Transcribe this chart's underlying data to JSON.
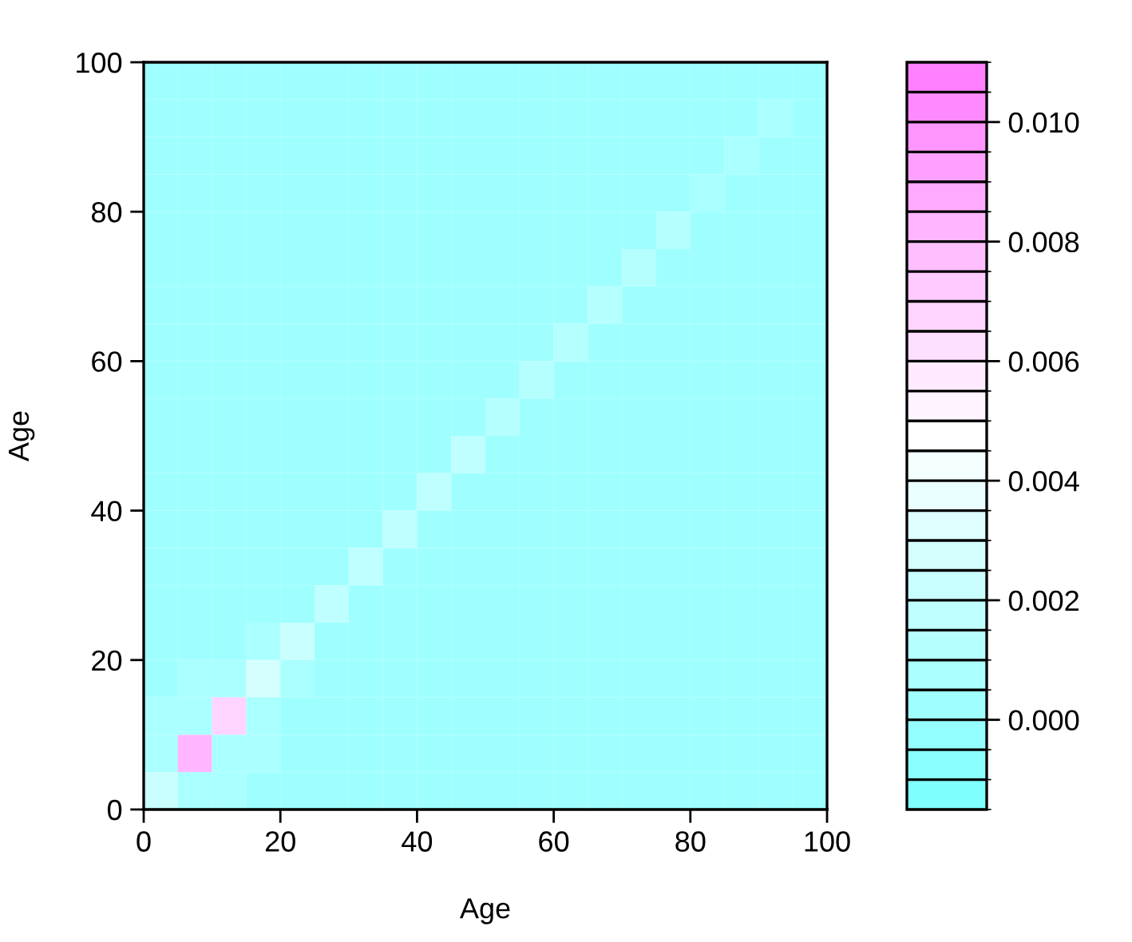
{
  "chart_data": {
    "type": "heatmap",
    "xlabel": "Age",
    "ylabel": "Age",
    "x": [
      2.5,
      7.5,
      12.5,
      17.5,
      22.5,
      27.5,
      32.5,
      37.5,
      42.5,
      47.5,
      52.5,
      57.5,
      62.5,
      67.5,
      72.5,
      77.5,
      82.5,
      87.5,
      92.5,
      97.5
    ],
    "y": [
      97.5,
      92.5,
      87.5,
      82.5,
      77.5,
      72.5,
      67.5,
      62.5,
      57.5,
      52.5,
      47.5,
      42.5,
      37.5,
      32.5,
      27.5,
      22.5,
      17.5,
      12.5,
      7.5,
      2.5
    ],
    "xlim": [
      0,
      100
    ],
    "ylim": [
      0,
      100
    ],
    "xticks": [
      0,
      20,
      40,
      60,
      80,
      100
    ],
    "yticks": [
      0,
      20,
      40,
      60,
      80,
      100
    ],
    "clim": [
      -0.0015,
      0.011
    ],
    "cticks": [
      {
        "value": 0,
        "label": "0.000"
      },
      {
        "value": 0.002,
        "label": "0.002"
      },
      {
        "value": 0.004,
        "label": "0.004"
      },
      {
        "value": 0.006,
        "label": "0.006"
      },
      {
        "value": 0.008,
        "label": "0.008"
      },
      {
        "value": 0.01,
        "label": "0.010"
      }
    ],
    "colors": [
      "#80ffff",
      "#8affff",
      "#95ffff",
      "#9fffff",
      "#aaffff",
      "#b5ffff",
      "#bfffff",
      "#caffff",
      "#d5ffff",
      "#dfffff",
      "#eaffff",
      "#f4ffff",
      "#ffffff",
      "#fff4ff",
      "#ffeaff",
      "#ffdfff",
      "#ffd5ff",
      "#ffcaff",
      "#ffbfff",
      "#ffb5ff",
      "#ffaaff",
      "#ff9fff",
      "#ff95ff",
      "#ff8aff",
      "#ff80ff"
    ],
    "cells": [
      [
        0.0003,
        0.0003,
        0.0003,
        0.0003,
        0.0003,
        0.0003,
        0.0003,
        0.0003,
        0.0003,
        0.0003,
        0.0003,
        0.0003,
        0.0003,
        0.0003,
        0.0003,
        0.0003,
        0.0003,
        0.0003,
        0.0003,
        0.0004
      ],
      [
        0.0003,
        0.0003,
        0.0003,
        0.0003,
        0.0003,
        0.0003,
        0.0003,
        0.0003,
        0.0003,
        0.0003,
        0.0003,
        0.0003,
        0.0003,
        0.0003,
        0.0003,
        0.0003,
        0.0003,
        0.0003,
        0.0005,
        0.0003
      ],
      [
        0.0003,
        0.0003,
        0.0003,
        0.0003,
        0.0003,
        0.0003,
        0.0003,
        0.0003,
        0.0003,
        0.0003,
        0.0003,
        0.0003,
        0.0003,
        0.0003,
        0.0003,
        0.0003,
        0.0003,
        0.0006,
        0.0003,
        0.0003
      ],
      [
        0.0003,
        0.0003,
        0.0003,
        0.0003,
        0.0003,
        0.0003,
        0.0003,
        0.0003,
        0.0003,
        0.0003,
        0.0003,
        0.0003,
        0.0003,
        0.0003,
        0.0003,
        0.0003,
        0.0008,
        0.0003,
        0.0003,
        0.0003
      ],
      [
        0.0003,
        0.0003,
        0.0003,
        0.0003,
        0.0003,
        0.0003,
        0.0003,
        0.0003,
        0.0003,
        0.0003,
        0.0003,
        0.0003,
        0.0003,
        0.0003,
        0.0003,
        0.0012,
        0.0003,
        0.0003,
        0.0003,
        0.0003
      ],
      [
        0.0003,
        0.0003,
        0.0003,
        0.0003,
        0.0003,
        0.0003,
        0.0003,
        0.0003,
        0.0003,
        0.0003,
        0.0003,
        0.0003,
        0.0003,
        0.0003,
        0.0013,
        0.0003,
        0.0003,
        0.0003,
        0.0003,
        0.0003
      ],
      [
        0.0003,
        0.0003,
        0.0003,
        0.0003,
        0.0003,
        0.0003,
        0.0003,
        0.0003,
        0.0003,
        0.0003,
        0.0003,
        0.0003,
        0.0003,
        0.0014,
        0.0003,
        0.0003,
        0.0003,
        0.0003,
        0.0003,
        0.0003
      ],
      [
        0.0003,
        0.0003,
        0.0003,
        0.0003,
        0.0003,
        0.0003,
        0.0003,
        0.0003,
        0.0003,
        0.0003,
        0.0003,
        0.0003,
        0.0014,
        0.0003,
        0.0003,
        0.0003,
        0.0003,
        0.0003,
        0.0003,
        0.0003
      ],
      [
        0.0003,
        0.0003,
        0.0003,
        0.0003,
        0.0003,
        0.0003,
        0.0003,
        0.0003,
        0.0003,
        0.0003,
        0.0003,
        0.0014,
        0.0003,
        0.0003,
        0.0003,
        0.0003,
        0.0003,
        0.0003,
        0.0003,
        0.0003
      ],
      [
        0.0003,
        0.0003,
        0.0003,
        0.0003,
        0.0003,
        0.0003,
        0.0003,
        0.0003,
        0.0003,
        0.0003,
        0.0014,
        0.0003,
        0.0003,
        0.0003,
        0.0003,
        0.0003,
        0.0003,
        0.0003,
        0.0003,
        0.0003
      ],
      [
        0.0003,
        0.0003,
        0.0003,
        0.0003,
        0.0003,
        0.0003,
        0.0003,
        0.0003,
        0.0003,
        0.0015,
        0.0003,
        0.0003,
        0.0003,
        0.0003,
        0.0003,
        0.0003,
        0.0003,
        0.0003,
        0.0003,
        0.0003
      ],
      [
        0.0003,
        0.0003,
        0.0003,
        0.0003,
        0.0003,
        0.0003,
        0.0003,
        0.0003,
        0.0015,
        0.0003,
        0.0003,
        0.0003,
        0.0003,
        0.0003,
        0.0003,
        0.0003,
        0.0003,
        0.0003,
        0.0003,
        0.0003
      ],
      [
        0.0003,
        0.0003,
        0.0003,
        0.0003,
        0.0003,
        0.0003,
        0.0003,
        0.0016,
        0.0003,
        0.0003,
        0.0003,
        0.0003,
        0.0003,
        0.0003,
        0.0003,
        0.0003,
        0.0003,
        0.0003,
        0.0003,
        0.0003
      ],
      [
        0.0003,
        0.0003,
        0.0003,
        0.0003,
        0.0003,
        0.0003,
        0.0017,
        0.0003,
        0.0003,
        0.0003,
        0.0003,
        0.0003,
        0.0003,
        0.0003,
        0.0003,
        0.0003,
        0.0003,
        0.0003,
        0.0003,
        0.0003
      ],
      [
        0.0003,
        0.0003,
        0.0003,
        0.0003,
        0.0004,
        0.0018,
        0.0004,
        0.0003,
        0.0003,
        0.0003,
        0.0003,
        0.0003,
        0.0003,
        0.0003,
        0.0003,
        0.0003,
        0.0003,
        0.0003,
        0.0003,
        0.0003
      ],
      [
        0.0003,
        0.0003,
        0.0004,
        0.0005,
        0.002,
        0.0004,
        0.0003,
        0.0003,
        0.0003,
        0.0003,
        0.0003,
        0.0003,
        0.0003,
        0.0003,
        0.0003,
        0.0003,
        0.0003,
        0.0003,
        0.0003,
        0.0003
      ],
      [
        0.0004,
        0.0005,
        0.0008,
        0.003,
        0.0005,
        0.0003,
        0.0003,
        0.0003,
        0.0003,
        0.0003,
        0.0003,
        0.0003,
        0.0003,
        0.0003,
        0.0003,
        0.0003,
        0.0003,
        0.0003,
        0.0003,
        0.0003
      ],
      [
        0.0005,
        0.0008,
        0.007,
        0.0008,
        0.0004,
        0.0003,
        0.0003,
        0.0003,
        0.0003,
        0.0003,
        0.0003,
        0.0003,
        0.0003,
        0.0003,
        0.0003,
        0.0003,
        0.0003,
        0.0003,
        0.0003,
        0.0003
      ],
      [
        0.0006,
        0.008,
        0.0008,
        0.0005,
        0.0004,
        0.0003,
        0.0003,
        0.0003,
        0.0003,
        0.0003,
        0.0003,
        0.0003,
        0.0003,
        0.0003,
        0.0003,
        0.0003,
        0.0003,
        0.0003,
        0.0003,
        0.0003
      ],
      [
        0.002,
        0.0006,
        0.0005,
        0.0004,
        0.0004,
        0.0003,
        0.0003,
        0.0003,
        0.0003,
        0.0003,
        0.0003,
        0.0003,
        0.0003,
        0.0003,
        0.0003,
        0.0003,
        0.0003,
        0.0003,
        0.0003,
        0.0003
      ]
    ]
  }
}
